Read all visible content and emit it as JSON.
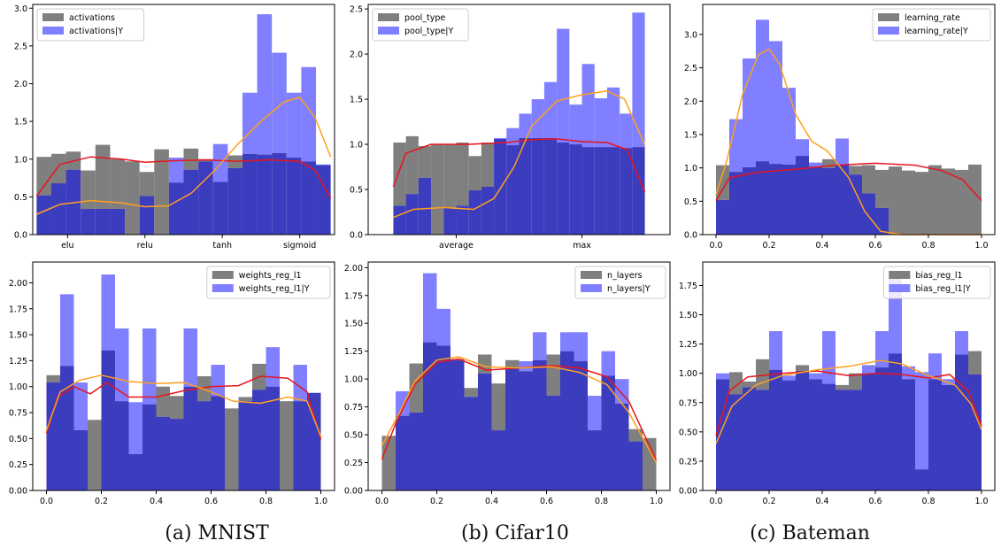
{
  "colors": {
    "gray": "#7f7f7f",
    "blue": "#7f7fff",
    "overlap": "#3c3cbf",
    "red": "#e8141c",
    "orange": "#ffa01e",
    "frame": "#000000"
  },
  "captions": [
    "(a) MNIST",
    "(b) Cifar10",
    "(c) Bateman"
  ],
  "chart_data": [
    {
      "type": "bar",
      "legend_labels": [
        "activations",
        "activations|Y"
      ],
      "legend_placement": "top-left",
      "xlim": [
        -0.45,
        3.45
      ],
      "ylim": [
        0,
        3.05
      ],
      "xticks": [
        0,
        1,
        2,
        3
      ],
      "xticklabels": [
        "elu",
        "relu",
        "tanh",
        "sigmoid"
      ],
      "yticks": [
        0,
        0.5,
        1.0,
        1.5,
        2.0,
        2.5,
        3.0
      ],
      "yticklabels": [
        "0.0",
        "0.5",
        "1.0",
        "1.5",
        "2.0",
        "2.5",
        "3.0"
      ],
      "bin_range": [
        -0.4,
        3.4
      ],
      "gray": [
        1.03,
        1.07,
        1.1,
        0.85,
        1.19,
        1.0,
        0.97,
        0.83,
        1.13,
        0.69,
        1.14,
        1.0,
        0.7,
        1.05,
        1.07,
        1.06,
        1.08,
        1.02,
        0.97,
        0.92
      ],
      "blue": [
        0.52,
        0.68,
        0.86,
        0.34,
        0.34,
        0.34,
        0.0,
        0.51,
        0.0,
        1.02,
        0.86,
        0.97,
        1.2,
        0.88,
        1.88,
        2.92,
        2.41,
        1.88,
        2.22,
        0.93
      ],
      "red_curve": [
        [
          -0.4,
          0.51
        ],
        [
          -0.1,
          0.93
        ],
        [
          0.3,
          1.03
        ],
        [
          0.7,
          1.0
        ],
        [
          1.0,
          0.96
        ],
        [
          1.4,
          0.98
        ],
        [
          1.8,
          0.99
        ],
        [
          2.2,
          0.97
        ],
        [
          2.6,
          0.99
        ],
        [
          3.0,
          0.97
        ],
        [
          3.2,
          0.85
        ],
        [
          3.4,
          0.48
        ]
      ],
      "orange_curve": [
        [
          -0.4,
          0.27
        ],
        [
          -0.1,
          0.4
        ],
        [
          0.3,
          0.45
        ],
        [
          0.7,
          0.42
        ],
        [
          1.0,
          0.37
        ],
        [
          1.3,
          0.38
        ],
        [
          1.6,
          0.55
        ],
        [
          1.9,
          0.85
        ],
        [
          2.2,
          1.2
        ],
        [
          2.5,
          1.5
        ],
        [
          2.8,
          1.76
        ],
        [
          3.0,
          1.82
        ],
        [
          3.2,
          1.55
        ],
        [
          3.4,
          1.03
        ]
      ]
    },
    {
      "type": "bar",
      "legend_labels": [
        "pool_type",
        "pool_type|Y"
      ],
      "legend_placement": "top-left",
      "xlim": [
        -0.1,
        1.1
      ],
      "ylim": [
        0,
        2.55
      ],
      "xticks": [
        0.25,
        0.75
      ],
      "xticklabels": [
        "average",
        "max"
      ],
      "yticks": [
        0,
        0.5,
        1.0,
        1.5,
        2.0,
        2.5
      ],
      "yticklabels": [
        "0.0",
        "0.5",
        "1.0",
        "1.5",
        "2.0",
        "2.5"
      ],
      "bin_range": [
        0.0,
        1.0
      ],
      "gray": [
        1.02,
        1.09,
        0.98,
        1.0,
        1.0,
        1.02,
        0.87,
        1.02,
        1.06,
        0.99,
        1.07,
        1.07,
        1.07,
        1.02,
        1.0,
        0.97,
        0.97,
        0.97,
        0.96,
        0.97
      ],
      "blue": [
        0.32,
        0.45,
        0.63,
        0.0,
        0.3,
        0.32,
        0.49,
        0.53,
        1.07,
        1.18,
        1.34,
        1.5,
        1.69,
        2.28,
        1.44,
        1.89,
        1.51,
        1.63,
        1.34,
        2.46
      ],
      "red_curve": [
        [
          0.0,
          0.53
        ],
        [
          0.05,
          0.9
        ],
        [
          0.15,
          1.0
        ],
        [
          0.3,
          1.0
        ],
        [
          0.45,
          1.02
        ],
        [
          0.55,
          1.05
        ],
        [
          0.65,
          1.06
        ],
        [
          0.75,
          1.03
        ],
        [
          0.85,
          1.02
        ],
        [
          0.93,
          0.94
        ],
        [
          1.0,
          0.47
        ]
      ],
      "orange_curve": [
        [
          0.0,
          0.19
        ],
        [
          0.08,
          0.28
        ],
        [
          0.2,
          0.3
        ],
        [
          0.32,
          0.28
        ],
        [
          0.4,
          0.4
        ],
        [
          0.48,
          0.75
        ],
        [
          0.55,
          1.2
        ],
        [
          0.65,
          1.48
        ],
        [
          0.75,
          1.55
        ],
        [
          0.85,
          1.59
        ],
        [
          0.92,
          1.5
        ],
        [
          1.0,
          0.99
        ]
      ]
    },
    {
      "type": "bar",
      "legend_labels": [
        "learning_rate",
        "learning_rate|Y"
      ],
      "legend_placement": "top-right",
      "xlim": [
        -0.05,
        1.05
      ],
      "ylim": [
        0,
        3.45
      ],
      "xticks": [
        0,
        0.2,
        0.4,
        0.6,
        0.8,
        1.0
      ],
      "xticklabels": [
        "0.0",
        "0.2",
        "0.4",
        "0.6",
        "0.8",
        "1.0"
      ],
      "yticks": [
        0,
        0.5,
        1.0,
        1.5,
        2.0,
        2.5,
        3.0
      ],
      "yticklabels": [
        "0.0",
        "0.5",
        "1.0",
        "1.5",
        "2.0",
        "2.5",
        "3.0"
      ],
      "bin_range": [
        0.0,
        1.0
      ],
      "gray": [
        1.04,
        0.94,
        1.01,
        1.1,
        1.06,
        1.05,
        1.18,
        1.02,
        1.13,
        1.05,
        1.03,
        1.04,
        0.97,
        1.02,
        0.96,
        0.94,
        1.04,
        0.99,
        0.97,
        1.05
      ],
      "blue": [
        0.52,
        1.73,
        2.64,
        3.22,
        2.9,
        2.2,
        1.43,
        1.08,
        1.0,
        1.44,
        0.9,
        0.62,
        0.4,
        0.0,
        0.0,
        0.0,
        0.0,
        0.0,
        0.0,
        0.0
      ],
      "red_curve": [
        [
          0.0,
          0.51
        ],
        [
          0.05,
          0.85
        ],
        [
          0.15,
          0.93
        ],
        [
          0.3,
          0.98
        ],
        [
          0.45,
          1.04
        ],
        [
          0.6,
          1.07
        ],
        [
          0.75,
          1.04
        ],
        [
          0.85,
          0.96
        ],
        [
          0.93,
          0.82
        ],
        [
          1.0,
          0.51
        ]
      ],
      "orange_curve": [
        [
          0.0,
          0.6
        ],
        [
          0.04,
          1.1
        ],
        [
          0.1,
          2.1
        ],
        [
          0.16,
          2.7
        ],
        [
          0.2,
          2.78
        ],
        [
          0.24,
          2.55
        ],
        [
          0.3,
          1.8
        ],
        [
          0.36,
          1.4
        ],
        [
          0.42,
          1.25
        ],
        [
          0.5,
          0.85
        ],
        [
          0.56,
          0.35
        ],
        [
          0.62,
          0.05
        ],
        [
          0.7,
          0.0
        ],
        [
          1.0,
          0.0
        ]
      ]
    },
    {
      "type": "bar",
      "legend_labels": [
        "weights_reg_l1",
        "weights_reg_l1|Y"
      ],
      "legend_placement": "top-right",
      "xlim": [
        -0.05,
        1.05
      ],
      "ylim": [
        0,
        2.2
      ],
      "xticks": [
        0,
        0.2,
        0.4,
        0.6,
        0.8,
        1.0
      ],
      "xticklabels": [
        "0.0",
        "0.2",
        "0.4",
        "0.6",
        "0.8",
        "1.0"
      ],
      "yticks": [
        0,
        0.25,
        0.5,
        0.75,
        1.0,
        1.25,
        1.5,
        1.75,
        2.0
      ],
      "yticklabels": [
        "0.00",
        "0.25",
        "0.50",
        "0.75",
        "1.00",
        "1.25",
        "1.50",
        "1.75",
        "2.00"
      ],
      "bin_range": [
        0.0,
        1.0
      ],
      "gray": [
        1.11,
        1.2,
        0.58,
        0.68,
        1.35,
        0.86,
        0.35,
        0.83,
        1.0,
        0.91,
        1.0,
        1.1,
        0.91,
        0.79,
        0.9,
        1.22,
        1.0,
        0.86,
        0.86,
        0.94
      ],
      "blue": [
        1.04,
        1.89,
        1.04,
        0.0,
        2.08,
        1.56,
        0.85,
        1.56,
        0.71,
        0.69,
        1.56,
        0.86,
        1.21,
        0.0,
        0.86,
        0.97,
        1.38,
        0.0,
        1.21,
        0.94
      ],
      "red_curve": [
        [
          0.0,
          0.55
        ],
        [
          0.04,
          0.9
        ],
        [
          0.1,
          1.0
        ],
        [
          0.16,
          0.93
        ],
        [
          0.22,
          1.04
        ],
        [
          0.3,
          0.9
        ],
        [
          0.4,
          0.9
        ],
        [
          0.5,
          0.96
        ],
        [
          0.6,
          1.0
        ],
        [
          0.7,
          1.01
        ],
        [
          0.78,
          1.1
        ],
        [
          0.88,
          1.08
        ],
        [
          0.95,
          0.95
        ],
        [
          1.0,
          0.49
        ]
      ],
      "orange_curve": [
        [
          0.0,
          0.58
        ],
        [
          0.05,
          0.95
        ],
        [
          0.12,
          1.06
        ],
        [
          0.2,
          1.11
        ],
        [
          0.3,
          1.05
        ],
        [
          0.4,
          1.03
        ],
        [
          0.5,
          1.04
        ],
        [
          0.58,
          0.97
        ],
        [
          0.68,
          0.86
        ],
        [
          0.78,
          0.84
        ],
        [
          0.88,
          0.9
        ],
        [
          0.95,
          0.86
        ],
        [
          1.0,
          0.52
        ]
      ]
    },
    {
      "type": "bar",
      "legend_labels": [
        "n_layers",
        "n_layers|Y"
      ],
      "legend_placement": "top-right",
      "xlim": [
        -0.05,
        1.05
      ],
      "ylim": [
        0,
        2.05
      ],
      "xticks": [
        0,
        0.2,
        0.4,
        0.6,
        0.8,
        1.0
      ],
      "xticklabels": [
        "0.0",
        "0.2",
        "0.4",
        "0.6",
        "0.8",
        "1.0"
      ],
      "yticks": [
        0,
        0.25,
        0.5,
        0.75,
        1.0,
        1.25,
        1.5,
        1.75,
        2.0
      ],
      "yticklabels": [
        "0.00",
        "0.25",
        "0.50",
        "0.75",
        "1.00",
        "1.25",
        "1.50",
        "1.75",
        "2.00"
      ],
      "bin_range": [
        0.0,
        1.0
      ],
      "gray": [
        0.49,
        0.67,
        1.14,
        1.33,
        1.3,
        1.18,
        0.92,
        1.22,
        0.96,
        1.17,
        1.07,
        1.17,
        1.22,
        1.25,
        1.16,
        0.54,
        1.03,
        0.78,
        0.55,
        0.47
      ],
      "blue": [
        0.0,
        0.89,
        0.7,
        1.95,
        1.63,
        1.17,
        0.84,
        1.05,
        0.54,
        1.1,
        1.16,
        1.42,
        0.85,
        1.42,
        1.42,
        0.85,
        1.25,
        1.0,
        0.44,
        0.0
      ],
      "red_curve": [
        [
          0.0,
          0.28
        ],
        [
          0.05,
          0.6
        ],
        [
          0.12,
          0.95
        ],
        [
          0.2,
          1.15
        ],
        [
          0.28,
          1.18
        ],
        [
          0.38,
          1.08
        ],
        [
          0.5,
          1.1
        ],
        [
          0.62,
          1.12
        ],
        [
          0.72,
          1.1
        ],
        [
          0.82,
          1.02
        ],
        [
          0.9,
          0.8
        ],
        [
          1.0,
          0.27
        ]
      ],
      "orange_curve": [
        [
          0.0,
          0.4
        ],
        [
          0.06,
          0.68
        ],
        [
          0.12,
          0.98
        ],
        [
          0.2,
          1.17
        ],
        [
          0.28,
          1.2
        ],
        [
          0.38,
          1.11
        ],
        [
          0.5,
          1.1
        ],
        [
          0.62,
          1.11
        ],
        [
          0.72,
          1.06
        ],
        [
          0.82,
          0.95
        ],
        [
          0.9,
          0.7
        ],
        [
          1.0,
          0.25
        ]
      ]
    },
    {
      "type": "bar",
      "legend_labels": [
        "bias_reg_l1",
        "bias_reg_l1|Y"
      ],
      "legend_placement": "top-right",
      "xlim": [
        -0.05,
        1.05
      ],
      "ylim": [
        0,
        1.95
      ],
      "xticks": [
        0,
        0.2,
        0.4,
        0.6,
        0.8,
        1.0
      ],
      "xticklabels": [
        "0.0",
        "0.2",
        "0.4",
        "0.6",
        "0.8",
        "1.0"
      ],
      "yticks": [
        0,
        0.25,
        0.5,
        0.75,
        1.0,
        1.25,
        1.5,
        1.75
      ],
      "yticklabels": [
        "0.00",
        "0.25",
        "0.50",
        "0.75",
        "1.00",
        "1.25",
        "1.50",
        "1.75"
      ],
      "bin_range": [
        0.0,
        1.0
      ],
      "gray": [
        0.95,
        1.01,
        0.93,
        1.12,
        1.03,
        0.94,
        1.07,
        0.95,
        0.91,
        0.9,
        1.0,
        1.0,
        1.05,
        1.17,
        0.95,
        0.18,
        0.95,
        0.9,
        1.16,
        1.19
      ],
      "blue": [
        1.0,
        0.82,
        0.88,
        0.86,
        1.36,
        0.98,
        1.02,
        1.0,
        1.36,
        0.86,
        0.86,
        1.07,
        1.36,
        1.87,
        1.06,
        1.01,
        1.17,
        0.95,
        1.36,
        0.99
      ],
      "red_curve": [
        [
          0.0,
          0.47
        ],
        [
          0.05,
          0.85
        ],
        [
          0.12,
          0.97
        ],
        [
          0.25,
          1.0
        ],
        [
          0.38,
          1.02
        ],
        [
          0.5,
          0.98
        ],
        [
          0.6,
          1.0
        ],
        [
          0.7,
          0.99
        ],
        [
          0.8,
          0.96
        ],
        [
          0.88,
          0.99
        ],
        [
          0.95,
          0.85
        ],
        [
          1.0,
          0.55
        ]
      ],
      "orange_curve": [
        [
          0.0,
          0.4
        ],
        [
          0.06,
          0.72
        ],
        [
          0.15,
          0.9
        ],
        [
          0.25,
          0.98
        ],
        [
          0.38,
          1.03
        ],
        [
          0.5,
          1.06
        ],
        [
          0.62,
          1.11
        ],
        [
          0.7,
          1.08
        ],
        [
          0.8,
          0.98
        ],
        [
          0.9,
          0.9
        ],
        [
          0.96,
          0.74
        ],
        [
          1.0,
          0.52
        ]
      ]
    }
  ]
}
